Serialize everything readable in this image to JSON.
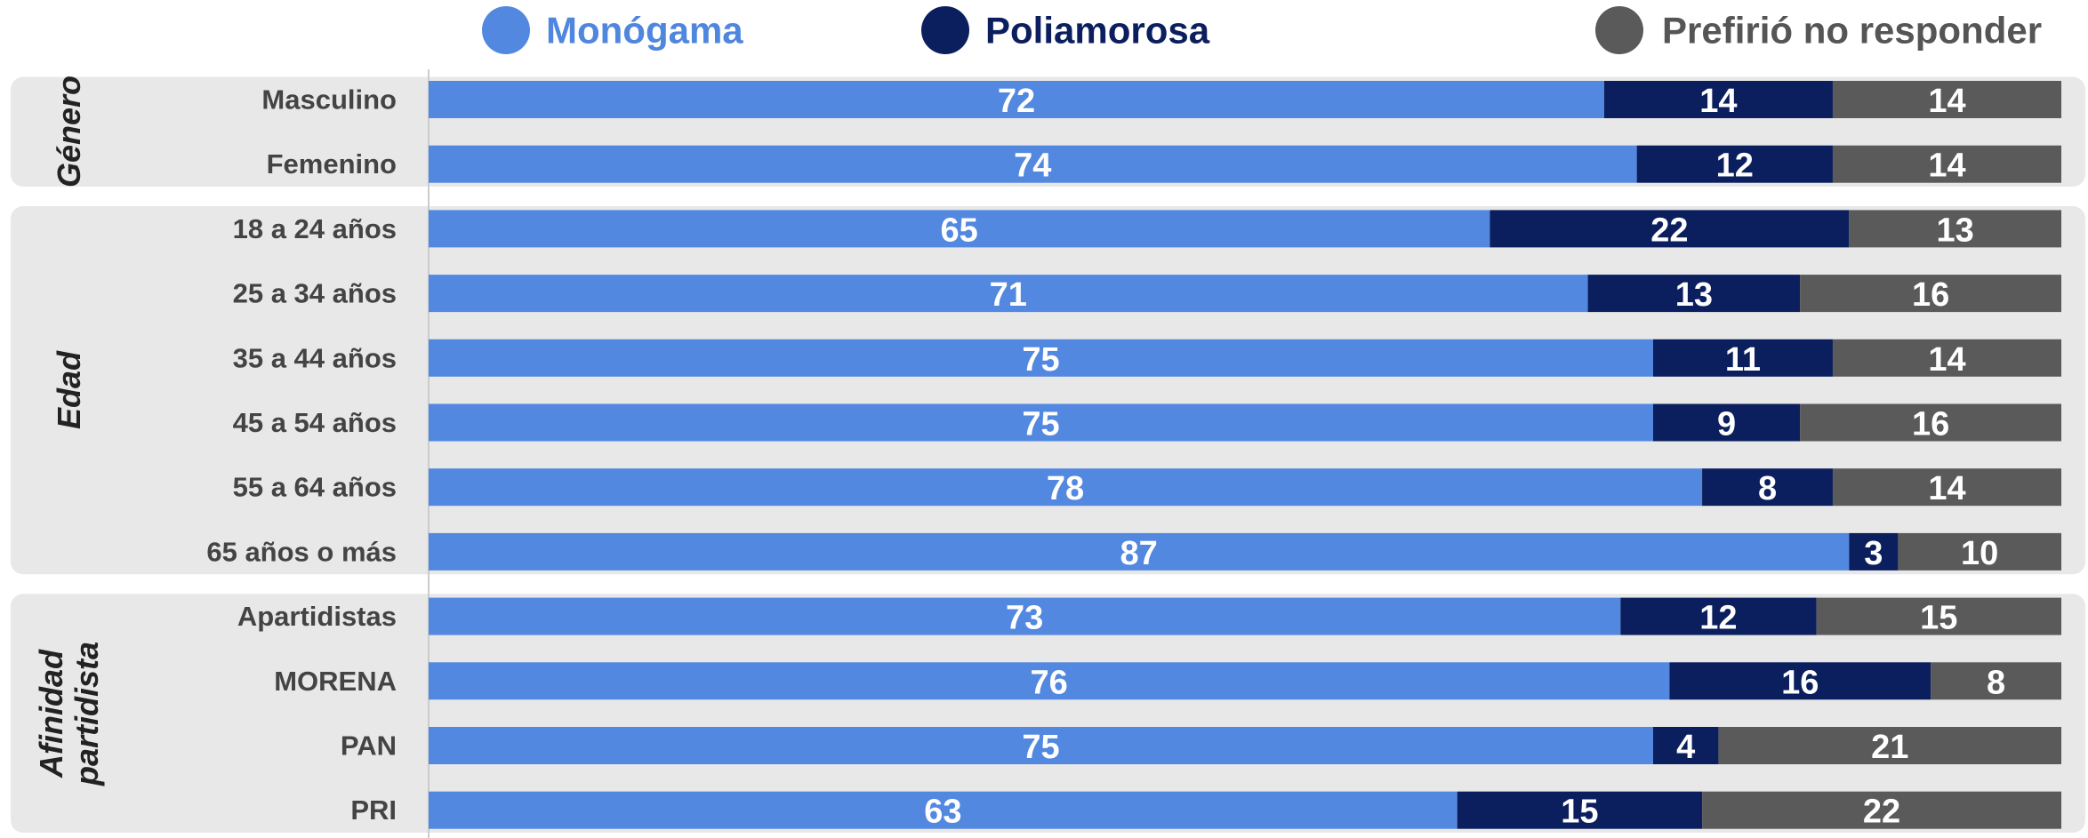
{
  "chart_data": {
    "type": "stacked-barh",
    "groups": [
      {
        "name": "Género",
        "categories": [
          "Masculino",
          "Femenino"
        ]
      },
      {
        "name": "Edad",
        "categories": [
          "18 a 24 años",
          "25 a 34 años",
          "35 a 44 años",
          "45 a 54 años",
          "55 a 64 años",
          "65 años o más"
        ]
      },
      {
        "name": "Afinidad partidista",
        "categories": [
          "Apartidistas",
          "MORENA",
          "PAN",
          "PRI"
        ]
      }
    ],
    "series": [
      {
        "name": "Monógama",
        "color": "#5288e0",
        "values": [
          72,
          74,
          65,
          71,
          75,
          75,
          78,
          87,
          73,
          76,
          75,
          63
        ]
      },
      {
        "name": "Poliamorosa",
        "color": "#0b1f5e",
        "values": [
          14,
          12,
          22,
          13,
          11,
          9,
          8,
          3,
          12,
          16,
          4,
          15
        ]
      },
      {
        "name": "Prefirió no responder",
        "color": "#5a5a5a",
        "values": [
          14,
          14,
          13,
          16,
          14,
          16,
          14,
          10,
          15,
          8,
          21,
          22
        ]
      }
    ],
    "xlim": [
      0,
      100
    ]
  }
}
